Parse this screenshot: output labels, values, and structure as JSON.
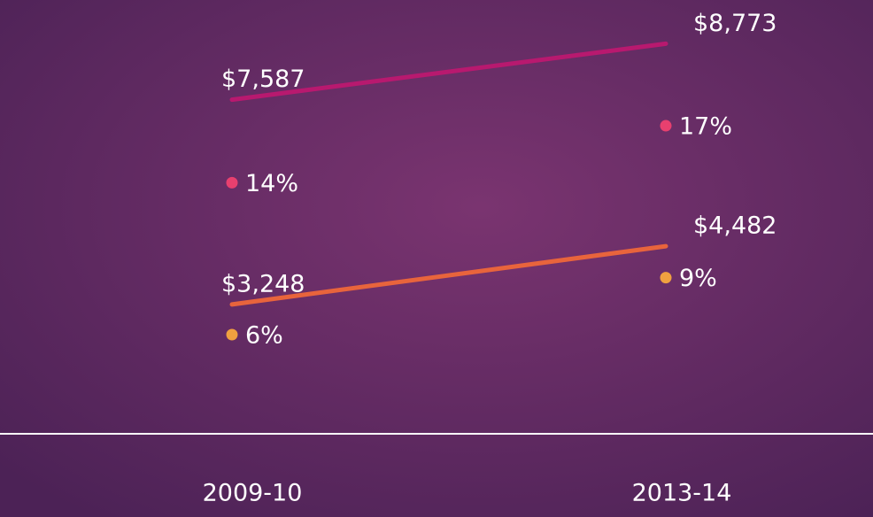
{
  "chart_data": {
    "type": "line",
    "categories": [
      "2009-10",
      "2013-14"
    ],
    "series": [
      {
        "color": "#b8196f",
        "values": [
          7587,
          8773
        ],
        "value_labels": [
          "$7,587",
          "$8,773"
        ]
      },
      {
        "color": "#e8643c",
        "values": [
          3248,
          4482
        ],
        "value_labels": [
          "$3,248",
          "$4,482"
        ]
      },
      {
        "color": "#e8406f",
        "axis": "y2",
        "values": [
          14,
          17
        ],
        "value_labels": [
          "14%",
          "17%"
        ]
      },
      {
        "color": "#f0a040",
        "axis": "y2",
        "values": [
          6,
          9
        ],
        "value_labels": [
          "6%",
          "9%"
        ]
      }
    ]
  }
}
